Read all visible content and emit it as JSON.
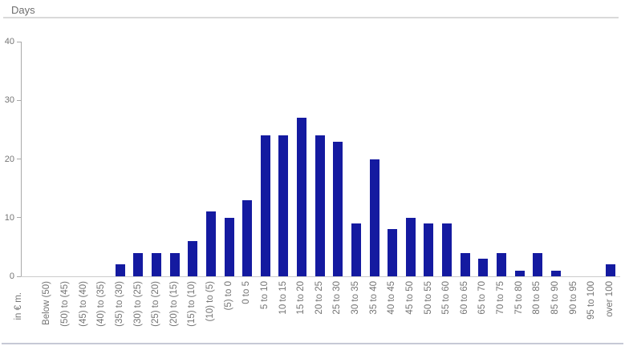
{
  "chart_data": {
    "type": "bar",
    "y_axis_title": "Days",
    "x_axis_title": "in € m.",
    "ylim": [
      0,
      40
    ],
    "yticks": [
      0,
      10,
      20,
      30,
      40
    ],
    "grid": false,
    "legend_position": "none",
    "bar_color": "#141aa0",
    "axis_color": "#a9a9a9",
    "text_color": "#747474",
    "categories": [
      "Below (50)",
      "(50) to (45)",
      "(45) to (40)",
      "(40) to (35)",
      "(35) to (30)",
      "(30) to (25)",
      "(25) to (20)",
      "(20) to (15)",
      "(15) to (10)",
      "(10) to (5)",
      "(5) to 0",
      "0 to 5",
      "5 to 10",
      "10 to 15",
      "15 to 20",
      "20 to 25",
      "25 to 30",
      "30 to 35",
      "35 to 40",
      "40 to 45",
      "45 to 50",
      "50 to 55",
      "55 to 60",
      "60 to 65",
      "65 to 70",
      "70 to 75",
      "75 to 80",
      "80 to 85",
      "85 to 90",
      "90 to 95",
      "95 to 100",
      "over 100"
    ],
    "values": [
      0,
      0,
      0,
      0,
      2,
      4,
      4,
      4,
      6,
      11,
      10,
      13,
      24,
      24,
      27,
      24,
      23,
      9,
      20,
      8,
      10,
      9,
      9,
      4,
      3,
      4,
      1,
      4,
      1,
      0,
      0,
      2
    ]
  }
}
